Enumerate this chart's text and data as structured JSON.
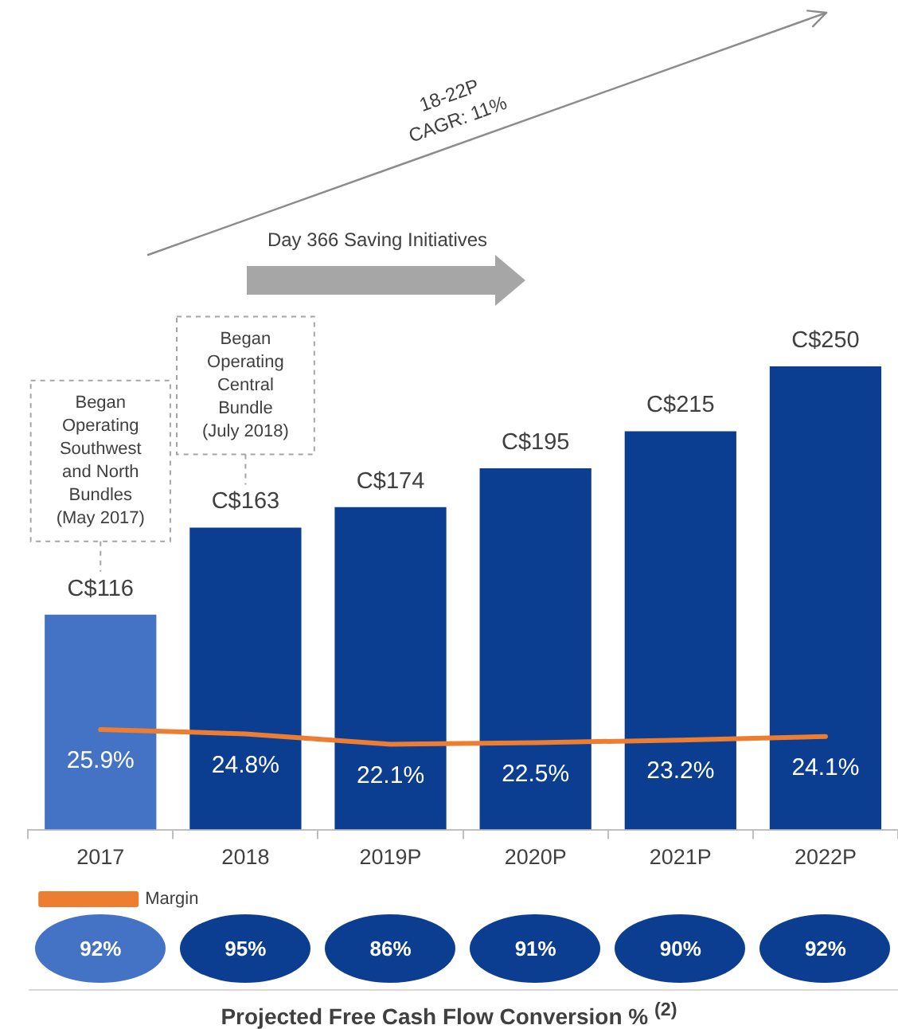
{
  "chart_data": [
    {
      "type": "bar",
      "categories": [
        "2017",
        "2018",
        "2019P",
        "2020P",
        "2021P",
        "2022P"
      ],
      "series": [
        {
          "type": "bar",
          "colors": [
            "#4472c4",
            "#0b3d91",
            "#0b3d91",
            "#0b3d91",
            "#0b3d91",
            "#0b3d91"
          ],
          "values": [
            116,
            163,
            174,
            195,
            215,
            250
          ],
          "value_labels": [
            "C$116",
            "C$163",
            "C$174",
            "C$195",
            "C$215",
            "C$250"
          ]
        },
        {
          "type": "line",
          "name": "Margin",
          "color": "#ed7d31",
          "axis": "y2",
          "values": [
            25.9,
            24.8,
            22.1,
            22.5,
            23.2,
            24.1
          ],
          "value_labels": [
            "25.9%",
            "24.8%",
            "22.1%",
            "22.5%",
            "23.2%",
            "24.1%"
          ]
        }
      ],
      "tick_labels": "x",
      "legend": "bottom left",
      "marker": "none",
      "annotations": [
        "18-22P\nCAGR: 11%",
        "Day 366 Saving Initiatives",
        "Began\nOperating\nSouthwest\nand North\nBundles\n(May 2017)",
        "Began\nOperating\nCentral\nBundle\n(July 2018)"
      ]
    },
    {
      "type": "other",
      "title": "Projected Free Cash Flow Conversion % $^{(2)}$",
      "values": [
        92,
        95,
        86,
        91,
        90,
        92
      ],
      "value_labels": [
        "92%",
        "95%",
        "86%",
        "91%",
        "90%",
        "92%"
      ],
      "colors": [
        "#4472c4",
        "#0b3d91",
        "#0b3d91",
        "#0b3d91",
        "#0b3d91",
        "#0b3d91"
      ]
    }
  ]
}
